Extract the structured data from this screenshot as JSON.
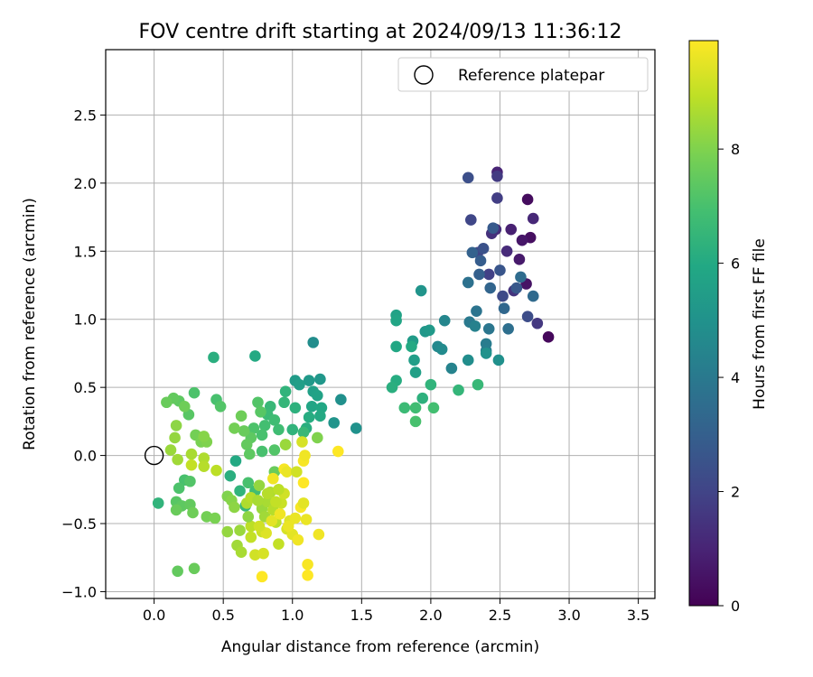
{
  "chart_data": {
    "type": "scatter",
    "title": "FOV centre drift starting at 2024/09/13 11:36:12",
    "xlabel": "Angular distance from reference (arcmin)",
    "ylabel": "Rotation from reference (arcmin)",
    "xlim": [
      -0.35,
      3.62
    ],
    "ylim": [
      -1.05,
      2.98
    ],
    "xticks": [
      "0.0",
      "0.5",
      "1.0",
      "1.5",
      "2.0",
      "2.5",
      "3.0",
      "3.5"
    ],
    "yticks": [
      "−1.0",
      "−0.5",
      "0.0",
      "0.5",
      "1.0",
      "1.5",
      "2.0",
      "2.5"
    ],
    "grid": true,
    "legend": {
      "position": "top-right",
      "entries": [
        "Reference platepar"
      ]
    },
    "colorbar": {
      "label": "Hours from first FF file",
      "colormap": "viridis",
      "range": [
        0,
        9.9
      ],
      "ticks": [
        "0",
        "2",
        "4",
        "6",
        "8"
      ]
    },
    "reference_point": {
      "x": 0.0,
      "y": 0.0,
      "label": "Reference platepar"
    },
    "points": [
      {
        "x": 2.85,
        "y": 0.87,
        "t": 0.2
      },
      {
        "x": 2.7,
        "y": 1.88,
        "t": 0.3
      },
      {
        "x": 2.72,
        "y": 1.6,
        "t": 0.4
      },
      {
        "x": 2.69,
        "y": 1.26,
        "t": 0.5
      },
      {
        "x": 2.66,
        "y": 1.58,
        "t": 0.6
      },
      {
        "x": 2.64,
        "y": 1.44,
        "t": 0.7
      },
      {
        "x": 2.58,
        "y": 1.66,
        "t": 0.9
      },
      {
        "x": 2.48,
        "y": 2.08,
        "t": 1.0
      },
      {
        "x": 2.74,
        "y": 1.74,
        "t": 1.1
      },
      {
        "x": 2.55,
        "y": 1.5,
        "t": 1.2
      },
      {
        "x": 2.47,
        "y": 1.66,
        "t": 1.3
      },
      {
        "x": 2.44,
        "y": 1.63,
        "t": 1.4
      },
      {
        "x": 2.6,
        "y": 1.21,
        "t": 1.5
      },
      {
        "x": 2.77,
        "y": 0.97,
        "t": 1.6
      },
      {
        "x": 2.48,
        "y": 2.05,
        "t": 1.7
      },
      {
        "x": 2.48,
        "y": 1.89,
        "t": 1.8
      },
      {
        "x": 2.42,
        "y": 1.33,
        "t": 1.9
      },
      {
        "x": 2.34,
        "y": 1.49,
        "t": 2.0
      },
      {
        "x": 2.29,
        "y": 1.73,
        "t": 2.1
      },
      {
        "x": 2.52,
        "y": 1.17,
        "t": 2.2
      },
      {
        "x": 2.7,
        "y": 1.02,
        "t": 2.3
      },
      {
        "x": 2.27,
        "y": 2.04,
        "t": 2.4
      },
      {
        "x": 2.38,
        "y": 1.52,
        "t": 2.5
      },
      {
        "x": 2.5,
        "y": 1.36,
        "t": 2.6
      },
      {
        "x": 2.62,
        "y": 1.23,
        "t": 2.7
      },
      {
        "x": 2.45,
        "y": 1.67,
        "t": 2.8
      },
      {
        "x": 2.36,
        "y": 1.43,
        "t": 2.9
      },
      {
        "x": 2.35,
        "y": 1.33,
        "t": 3.0
      },
      {
        "x": 2.3,
        "y": 1.49,
        "t": 3.1
      },
      {
        "x": 2.43,
        "y": 1.23,
        "t": 3.2
      },
      {
        "x": 2.53,
        "y": 1.08,
        "t": 3.3
      },
      {
        "x": 2.74,
        "y": 1.17,
        "t": 3.4
      },
      {
        "x": 2.65,
        "y": 1.31,
        "t": 3.5
      },
      {
        "x": 2.56,
        "y": 0.93,
        "t": 3.6
      },
      {
        "x": 2.27,
        "y": 1.27,
        "t": 3.7
      },
      {
        "x": 2.33,
        "y": 1.06,
        "t": 3.8
      },
      {
        "x": 2.42,
        "y": 0.93,
        "t": 3.9
      },
      {
        "x": 2.28,
        "y": 0.98,
        "t": 4.0
      },
      {
        "x": 2.4,
        "y": 0.82,
        "t": 4.1
      },
      {
        "x": 2.4,
        "y": 0.77,
        "t": 4.2
      },
      {
        "x": 2.32,
        "y": 0.95,
        "t": 4.3
      },
      {
        "x": 2.15,
        "y": 0.64,
        "t": 4.4
      },
      {
        "x": 2.1,
        "y": 0.99,
        "t": 4.5
      },
      {
        "x": 2.05,
        "y": 0.8,
        "t": 4.6
      },
      {
        "x": 2.08,
        "y": 0.78,
        "t": 4.7
      },
      {
        "x": 2.27,
        "y": 0.7,
        "t": 4.8
      },
      {
        "x": 2.49,
        "y": 0.7,
        "t": 4.9
      },
      {
        "x": 2.4,
        "y": 0.75,
        "t": 5.0
      },
      {
        "x": 1.93,
        "y": 1.21,
        "t": 5.1
      },
      {
        "x": 1.96,
        "y": 0.91,
        "t": 5.2
      },
      {
        "x": 1.99,
        "y": 0.92,
        "t": 5.3
      },
      {
        "x": 1.87,
        "y": 0.84,
        "t": 5.4
      },
      {
        "x": 1.88,
        "y": 0.7,
        "t": 5.5
      },
      {
        "x": 1.89,
        "y": 0.61,
        "t": 5.6
      },
      {
        "x": 1.75,
        "y": 1.03,
        "t": 5.7
      },
      {
        "x": 1.75,
        "y": 0.99,
        "t": 5.8
      },
      {
        "x": 1.75,
        "y": 0.8,
        "t": 5.9
      },
      {
        "x": 1.86,
        "y": 0.8,
        "t": 6.0
      },
      {
        "x": 1.75,
        "y": 0.55,
        "t": 6.1
      },
      {
        "x": 1.72,
        "y": 0.5,
        "t": 6.2
      },
      {
        "x": 1.94,
        "y": 0.42,
        "t": 6.3
      },
      {
        "x": 2.0,
        "y": 0.52,
        "t": 6.4
      },
      {
        "x": 2.2,
        "y": 0.48,
        "t": 6.5
      },
      {
        "x": 2.34,
        "y": 0.52,
        "t": 6.6
      },
      {
        "x": 1.81,
        "y": 0.35,
        "t": 6.7
      },
      {
        "x": 1.89,
        "y": 0.35,
        "t": 6.8
      },
      {
        "x": 2.02,
        "y": 0.35,
        "t": 6.9
      },
      {
        "x": 1.89,
        "y": 0.25,
        "t": 7.0
      },
      {
        "x": 1.15,
        "y": 0.83,
        "t": 4.8
      },
      {
        "x": 1.35,
        "y": 0.41,
        "t": 4.9
      },
      {
        "x": 1.46,
        "y": 0.2,
        "t": 5.0
      },
      {
        "x": 1.3,
        "y": 0.24,
        "t": 5.1
      },
      {
        "x": 1.2,
        "y": 0.56,
        "t": 5.2
      },
      {
        "x": 1.12,
        "y": 0.55,
        "t": 5.3
      },
      {
        "x": 1.02,
        "y": 0.55,
        "t": 5.4
      },
      {
        "x": 1.05,
        "y": 0.52,
        "t": 5.5
      },
      {
        "x": 1.15,
        "y": 0.47,
        "t": 5.6
      },
      {
        "x": 1.18,
        "y": 0.44,
        "t": 5.7
      },
      {
        "x": 1.14,
        "y": 0.36,
        "t": 5.8
      },
      {
        "x": 1.21,
        "y": 0.35,
        "t": 5.9
      },
      {
        "x": 1.2,
        "y": 0.29,
        "t": 6.0
      },
      {
        "x": 1.12,
        "y": 0.28,
        "t": 6.1
      },
      {
        "x": 1.1,
        "y": 0.2,
        "t": 6.2
      },
      {
        "x": 1.02,
        "y": 0.35,
        "t": 6.3
      },
      {
        "x": 0.95,
        "y": 0.47,
        "t": 6.4
      },
      {
        "x": 0.94,
        "y": 0.39,
        "t": 6.5
      },
      {
        "x": 0.84,
        "y": 0.36,
        "t": 6.6
      },
      {
        "x": 0.82,
        "y": 0.3,
        "t": 6.7
      },
      {
        "x": 0.87,
        "y": 0.26,
        "t": 6.8
      },
      {
        "x": 0.8,
        "y": 0.22,
        "t": 6.9
      },
      {
        "x": 0.78,
        "y": 0.15,
        "t": 7.0
      },
      {
        "x": 0.72,
        "y": 0.2,
        "t": 7.1
      },
      {
        "x": 0.75,
        "y": 0.39,
        "t": 7.2
      },
      {
        "x": 0.77,
        "y": 0.32,
        "t": 7.3
      },
      {
        "x": 0.7,
        "y": 0.13,
        "t": 7.4
      },
      {
        "x": 0.67,
        "y": 0.08,
        "t": 7.5
      },
      {
        "x": 0.65,
        "y": 0.18,
        "t": 7.6
      },
      {
        "x": 0.63,
        "y": 0.29,
        "t": 7.7
      },
      {
        "x": 0.58,
        "y": 0.2,
        "t": 7.8
      },
      {
        "x": 0.73,
        "y": 0.73,
        "t": 6.0
      },
      {
        "x": 0.43,
        "y": 0.72,
        "t": 6.2
      },
      {
        "x": 1.0,
        "y": 0.19,
        "t": 6.4
      },
      {
        "x": 1.08,
        "y": 0.17,
        "t": 6.6
      },
      {
        "x": 0.9,
        "y": 0.19,
        "t": 6.8
      },
      {
        "x": 0.78,
        "y": 0.03,
        "t": 7.0
      },
      {
        "x": 0.87,
        "y": 0.04,
        "t": 7.2
      },
      {
        "x": 0.69,
        "y": 0.01,
        "t": 7.4
      },
      {
        "x": 0.87,
        "y": -0.12,
        "t": 7.6
      },
      {
        "x": 0.95,
        "y": 0.08,
        "t": 7.8
      },
      {
        "x": 1.18,
        "y": 0.13,
        "t": 8.0
      },
      {
        "x": 0.59,
        "y": -0.04,
        "t": 6.0
      },
      {
        "x": 0.55,
        "y": -0.15,
        "t": 6.2
      },
      {
        "x": 0.62,
        "y": -0.26,
        "t": 6.4
      },
      {
        "x": 0.66,
        "y": -0.37,
        "t": 6.6
      },
      {
        "x": 0.73,
        "y": -0.26,
        "t": 6.8
      },
      {
        "x": 0.68,
        "y": -0.2,
        "t": 7.0
      },
      {
        "x": 0.45,
        "y": 0.41,
        "t": 7.0
      },
      {
        "x": 0.48,
        "y": 0.36,
        "t": 7.2
      },
      {
        "x": 0.29,
        "y": 0.46,
        "t": 7.1
      },
      {
        "x": 0.25,
        "y": 0.3,
        "t": 7.3
      },
      {
        "x": 0.18,
        "y": 0.4,
        "t": 7.4
      },
      {
        "x": 0.14,
        "y": 0.42,
        "t": 7.5
      },
      {
        "x": 0.09,
        "y": 0.39,
        "t": 7.6
      },
      {
        "x": 0.22,
        "y": 0.36,
        "t": 7.7
      },
      {
        "x": 0.3,
        "y": 0.15,
        "t": 7.8
      },
      {
        "x": 0.34,
        "y": 0.1,
        "t": 7.9
      },
      {
        "x": 0.38,
        "y": 0.1,
        "t": 8.0
      },
      {
        "x": 0.36,
        "y": 0.14,
        "t": 8.1
      },
      {
        "x": 0.16,
        "y": 0.22,
        "t": 8.2
      },
      {
        "x": 0.15,
        "y": 0.13,
        "t": 8.3
      },
      {
        "x": 0.12,
        "y": 0.04,
        "t": 8.4
      },
      {
        "x": 0.17,
        "y": -0.03,
        "t": 8.5
      },
      {
        "x": 0.27,
        "y": 0.01,
        "t": 8.6
      },
      {
        "x": 0.36,
        "y": -0.02,
        "t": 8.7
      },
      {
        "x": 0.36,
        "y": -0.08,
        "t": 8.8
      },
      {
        "x": 0.45,
        "y": -0.11,
        "t": 8.9
      },
      {
        "x": 0.27,
        "y": -0.07,
        "t": 9.0
      },
      {
        "x": 0.22,
        "y": -0.18,
        "t": 7.0
      },
      {
        "x": 0.18,
        "y": -0.24,
        "t": 7.1
      },
      {
        "x": 0.26,
        "y": -0.19,
        "t": 7.2
      },
      {
        "x": 0.16,
        "y": -0.34,
        "t": 7.3
      },
      {
        "x": 0.2,
        "y": -0.37,
        "t": 7.4
      },
      {
        "x": 0.26,
        "y": -0.36,
        "t": 7.5
      },
      {
        "x": 0.16,
        "y": -0.4,
        "t": 7.6
      },
      {
        "x": 0.28,
        "y": -0.42,
        "t": 7.7
      },
      {
        "x": 0.38,
        "y": -0.45,
        "t": 7.8
      },
      {
        "x": 0.44,
        "y": -0.46,
        "t": 7.9
      },
      {
        "x": 0.03,
        "y": -0.35,
        "t": 6.4
      },
      {
        "x": 0.17,
        "y": -0.85,
        "t": 7.5
      },
      {
        "x": 0.29,
        "y": -0.83,
        "t": 7.6
      },
      {
        "x": 0.53,
        "y": -0.3,
        "t": 8.0
      },
      {
        "x": 0.56,
        "y": -0.33,
        "t": 8.1
      },
      {
        "x": 0.58,
        "y": -0.38,
        "t": 8.2
      },
      {
        "x": 0.53,
        "y": -0.56,
        "t": 8.3
      },
      {
        "x": 0.62,
        "y": -0.55,
        "t": 8.4
      },
      {
        "x": 0.6,
        "y": -0.66,
        "t": 8.5
      },
      {
        "x": 0.63,
        "y": -0.71,
        "t": 8.6
      },
      {
        "x": 0.67,
        "y": -0.35,
        "t": 8.7
      },
      {
        "x": 0.7,
        "y": -0.31,
        "t": 8.8
      },
      {
        "x": 0.7,
        "y": -0.52,
        "t": 8.9
      },
      {
        "x": 0.7,
        "y": -0.6,
        "t": 9.0
      },
      {
        "x": 0.78,
        "y": -0.56,
        "t": 9.1
      },
      {
        "x": 0.73,
        "y": -0.73,
        "t": 9.2
      },
      {
        "x": 0.79,
        "y": -0.72,
        "t": 9.3
      },
      {
        "x": 0.76,
        "y": -0.22,
        "t": 8.3
      },
      {
        "x": 0.78,
        "y": -0.39,
        "t": 8.4
      },
      {
        "x": 0.8,
        "y": -0.45,
        "t": 8.5
      },
      {
        "x": 0.82,
        "y": -0.34,
        "t": 8.6
      },
      {
        "x": 0.84,
        "y": -0.27,
        "t": 8.7
      },
      {
        "x": 0.86,
        "y": -0.4,
        "t": 8.8
      },
      {
        "x": 0.88,
        "y": -0.49,
        "t": 8.9
      },
      {
        "x": 0.9,
        "y": -0.65,
        "t": 9.0
      },
      {
        "x": 0.92,
        "y": -0.35,
        "t": 9.1
      },
      {
        "x": 0.94,
        "y": -0.28,
        "t": 9.2
      },
      {
        "x": 0.96,
        "y": -0.54,
        "t": 9.3
      },
      {
        "x": 0.98,
        "y": -0.48,
        "t": 9.4
      },
      {
        "x": 1.0,
        "y": -0.58,
        "t": 9.5
      },
      {
        "x": 1.02,
        "y": -0.46,
        "t": 9.6
      },
      {
        "x": 1.04,
        "y": -0.62,
        "t": 9.7
      },
      {
        "x": 1.06,
        "y": -0.38,
        "t": 9.8
      },
      {
        "x": 1.08,
        "y": -0.2,
        "t": 9.9
      },
      {
        "x": 0.94,
        "y": -0.1,
        "t": 9.8
      },
      {
        "x": 0.86,
        "y": -0.17,
        "t": 9.7
      },
      {
        "x": 1.1,
        "y": -0.47,
        "t": 9.6
      },
      {
        "x": 1.08,
        "y": -0.35,
        "t": 9.5
      },
      {
        "x": 1.11,
        "y": -0.8,
        "t": 9.8
      },
      {
        "x": 1.11,
        "y": -0.88,
        "t": 9.9
      },
      {
        "x": 0.78,
        "y": -0.89,
        "t": 9.9
      },
      {
        "x": 1.19,
        "y": -0.58,
        "t": 9.7
      },
      {
        "x": 1.33,
        "y": 0.03,
        "t": 9.9
      },
      {
        "x": 1.08,
        "y": -0.04,
        "t": 9.8
      },
      {
        "x": 1.09,
        "y": 0.0,
        "t": 9.7
      },
      {
        "x": 1.07,
        "y": 0.1,
        "t": 9.3
      },
      {
        "x": 0.96,
        "y": -0.12,
        "t": 9.6
      },
      {
        "x": 0.81,
        "y": -0.57,
        "t": 9.4
      },
      {
        "x": 0.85,
        "y": -0.48,
        "t": 9.5
      },
      {
        "x": 0.91,
        "y": -0.43,
        "t": 9.7
      },
      {
        "x": 0.97,
        "y": -0.52,
        "t": 9.6
      },
      {
        "x": 0.88,
        "y": -0.34,
        "t": 9.0
      },
      {
        "x": 0.82,
        "y": -0.28,
        "t": 8.8
      },
      {
        "x": 0.75,
        "y": -0.33,
        "t": 8.6
      },
      {
        "x": 0.9,
        "y": -0.25,
        "t": 8.9
      },
      {
        "x": 0.76,
        "y": -0.52,
        "t": 9.2
      },
      {
        "x": 0.68,
        "y": -0.45,
        "t": 8.2
      },
      {
        "x": 0.95,
        "y": 0.08,
        "t": 8.4
      },
      {
        "x": 1.03,
        "y": -0.12,
        "t": 9.2
      }
    ]
  }
}
